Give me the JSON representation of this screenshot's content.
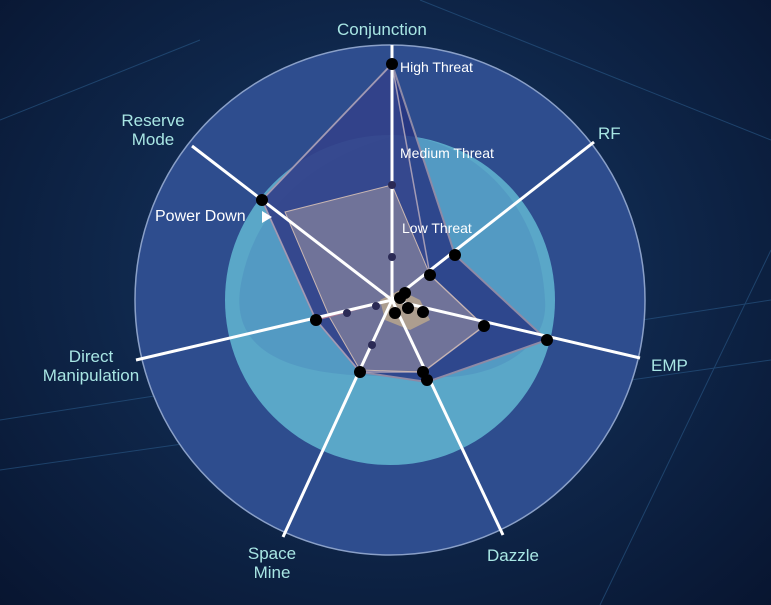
{
  "axes": [
    {
      "label": "Conjunction"
    },
    {
      "label": "RF"
    },
    {
      "label": "EMP"
    },
    {
      "label": "Dazzle"
    },
    {
      "label": "Space\nMine"
    },
    {
      "label": "Direct\nManipulation"
    },
    {
      "label": "Reserve\nMode"
    }
  ],
  "threat_levels": {
    "high": "High Threat",
    "medium": "Medium Threat",
    "low": "Low Threat"
  },
  "marker": {
    "label": "Power Down"
  },
  "colors": {
    "outer_ring": "#2e4d8e",
    "low_zone": "#5aa7c8",
    "axis_line": "#ffffff",
    "axis_label": "#a8e6e4",
    "point": "#000000"
  }
}
